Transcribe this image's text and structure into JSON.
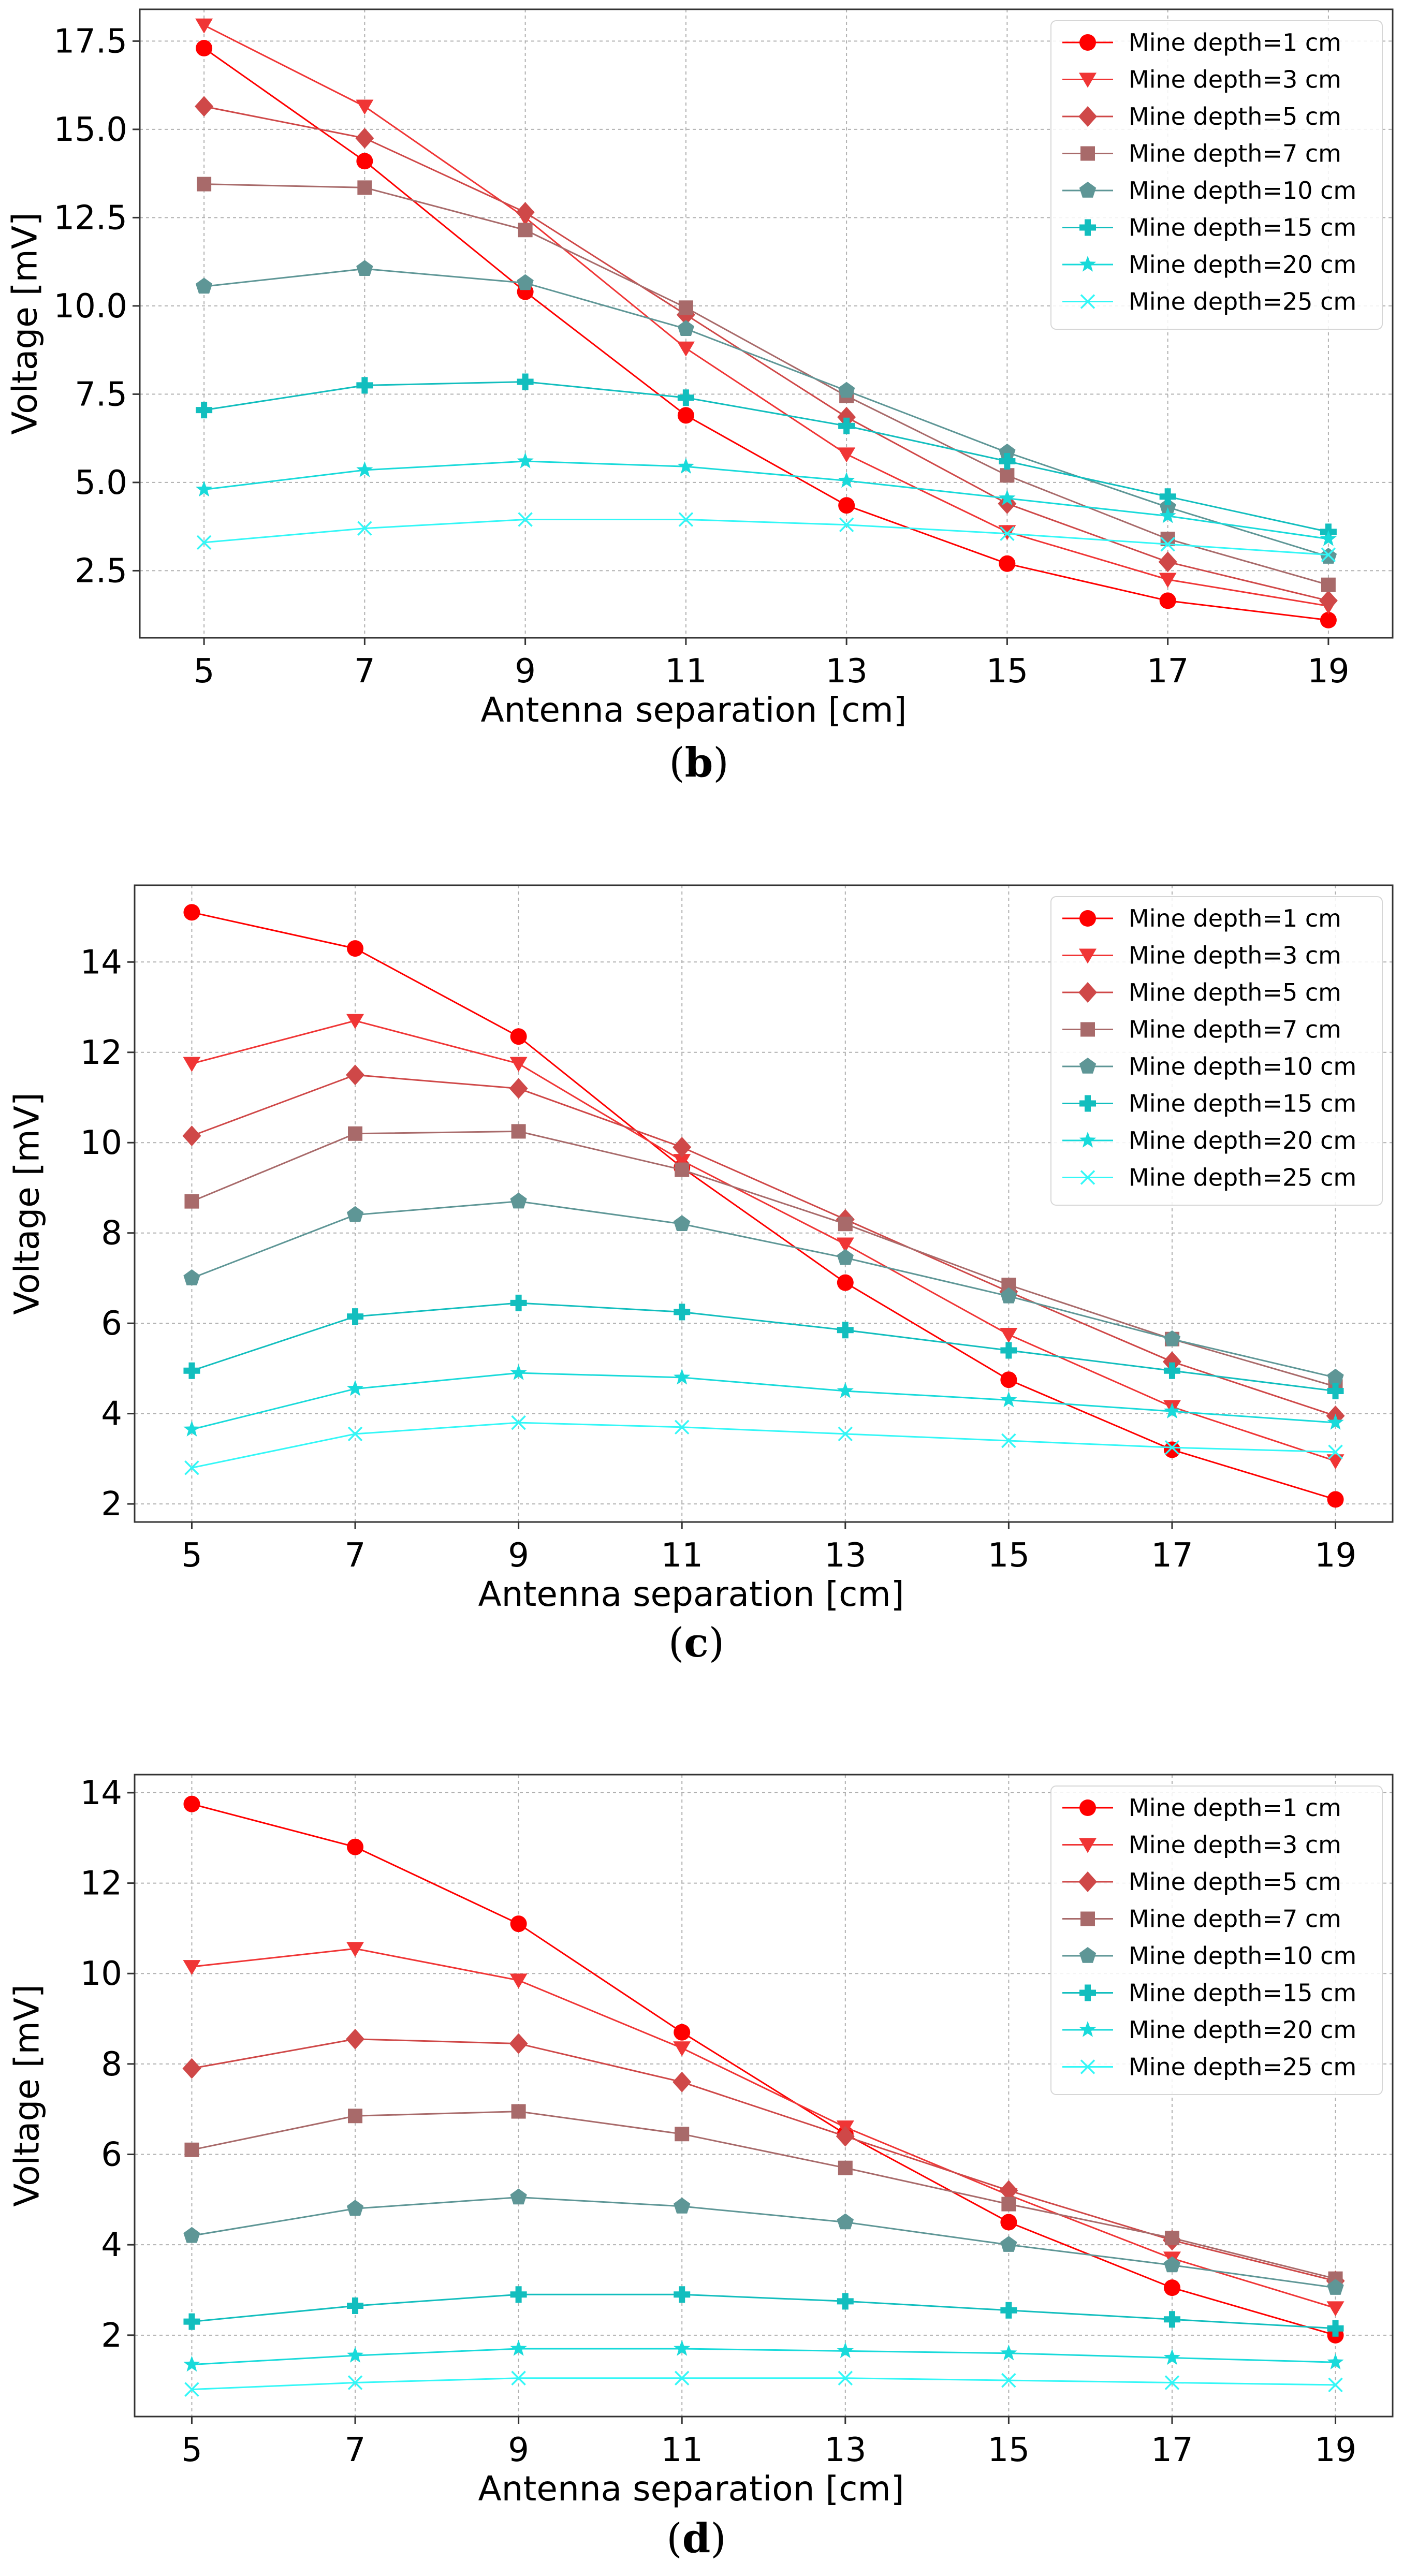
{
  "colors": {
    "Mine depth=1 cm": "#ff0000",
    "Mine depth=3 cm": "#f03535",
    "Mine depth=5 cm": "#cf4848",
    "Mine depth=7 cm": "#a86a6a",
    "Mine depth=10 cm": "#5e9696",
    "Mine depth=15 cm": "#12bebe",
    "Mine depth=20 cm": "#18dada",
    "Mine depth=25 cm": "#33f7f7"
  },
  "markers": [
    "circle",
    "triangle-down",
    "diamond",
    "square",
    "pentagon",
    "plus",
    "star",
    "x"
  ],
  "chart_data": [
    {
      "type": "line",
      "caption": {
        "open": "(",
        "letter": "b",
        "close": ")"
      },
      "xlabel": "Antenna separation [cm]",
      "ylabel": "Voltage [mV]",
      "x": [
        5,
        7,
        9,
        11,
        13,
        15,
        17,
        19
      ],
      "xticks": [
        "5",
        "7",
        "9",
        "11",
        "13",
        "15",
        "17",
        "19"
      ],
      "yticks": [
        2.5,
        5.0,
        7.5,
        10.0,
        12.5,
        15.0,
        17.5
      ],
      "yticklabels": [
        "2.5",
        "5.0",
        "7.5",
        "10.0",
        "12.5",
        "15.0",
        "17.5"
      ],
      "ylim": [
        0.6,
        18.4
      ],
      "xlim": [
        4.2,
        19.8
      ],
      "grid": true,
      "legend": "top-right",
      "series": [
        {
          "name": "Mine depth=1 cm",
          "values": [
            17.3,
            14.1,
            10.4,
            6.9,
            4.35,
            2.7,
            1.65,
            1.1
          ]
        },
        {
          "name": "Mine depth=3 cm",
          "values": [
            17.95,
            15.65,
            12.5,
            8.8,
            5.8,
            3.6,
            2.25,
            1.5
          ]
        },
        {
          "name": "Mine depth=5 cm",
          "values": [
            15.65,
            14.75,
            12.65,
            9.75,
            6.85,
            4.4,
            2.75,
            1.65
          ]
        },
        {
          "name": "Mine depth=7 cm",
          "values": [
            13.45,
            13.35,
            12.15,
            9.95,
            7.45,
            5.2,
            3.4,
            2.1
          ]
        },
        {
          "name": "Mine depth=10 cm",
          "values": [
            10.55,
            11.05,
            10.65,
            9.35,
            7.6,
            5.85,
            4.3,
            2.9
          ]
        },
        {
          "name": "Mine depth=15 cm",
          "values": [
            7.05,
            7.75,
            7.85,
            7.4,
            6.6,
            5.6,
            4.6,
            3.6
          ]
        },
        {
          "name": "Mine depth=20 cm",
          "values": [
            4.8,
            5.35,
            5.6,
            5.45,
            5.05,
            4.55,
            4.05,
            3.4
          ]
        },
        {
          "name": "Mine depth=25 cm",
          "values": [
            3.3,
            3.7,
            3.95,
            3.95,
            3.8,
            3.55,
            3.25,
            2.95
          ]
        }
      ]
    },
    {
      "type": "line",
      "caption": {
        "open": "(",
        "letter": "c",
        "close": ")"
      },
      "xlabel": "Antenna separation [cm]",
      "ylabel": "Voltage [mV]",
      "x": [
        5,
        7,
        9,
        11,
        13,
        15,
        17,
        19
      ],
      "xticks": [
        "5",
        "7",
        "9",
        "11",
        "13",
        "15",
        "17",
        "19"
      ],
      "yticks": [
        2,
        4,
        6,
        8,
        10,
        12,
        14
      ],
      "yticklabels": [
        "2",
        "4",
        "6",
        "8",
        "10",
        "12",
        "14"
      ],
      "ylim": [
        1.6,
        15.7
      ],
      "xlim": [
        4.3,
        19.7
      ],
      "grid": true,
      "legend": "top-right",
      "series": [
        {
          "name": "Mine depth=1 cm",
          "values": [
            15.1,
            14.3,
            12.35,
            9.45,
            6.9,
            4.75,
            3.2,
            2.1
          ]
        },
        {
          "name": "Mine depth=3 cm",
          "values": [
            11.75,
            12.7,
            11.75,
            9.6,
            7.75,
            5.75,
            4.15,
            2.95
          ]
        },
        {
          "name": "Mine depth=5 cm",
          "values": [
            10.15,
            11.5,
            11.2,
            9.9,
            8.3,
            6.7,
            5.15,
            3.95
          ]
        },
        {
          "name": "Mine depth=7 cm",
          "values": [
            8.7,
            10.2,
            10.25,
            9.4,
            8.2,
            6.85,
            5.65,
            4.6
          ]
        },
        {
          "name": "Mine depth=10 cm",
          "values": [
            7.0,
            8.4,
            8.7,
            8.2,
            7.45,
            6.6,
            5.65,
            4.8
          ]
        },
        {
          "name": "Mine depth=15 cm",
          "values": [
            4.95,
            6.15,
            6.45,
            6.25,
            5.85,
            5.4,
            4.95,
            4.5
          ]
        },
        {
          "name": "Mine depth=20 cm",
          "values": [
            3.65,
            4.55,
            4.9,
            4.8,
            4.5,
            4.3,
            4.05,
            3.8
          ]
        },
        {
          "name": "Mine depth=25 cm",
          "values": [
            2.8,
            3.55,
            3.8,
            3.7,
            3.55,
            3.4,
            3.25,
            3.15
          ]
        }
      ]
    },
    {
      "type": "line",
      "caption": {
        "open": "(",
        "letter": "d",
        "close": ")"
      },
      "xlabel": "Antenna separation [cm]",
      "ylabel": "Voltage [mV]",
      "x": [
        5,
        7,
        9,
        11,
        13,
        15,
        17,
        19
      ],
      "xticks": [
        "5",
        "7",
        "9",
        "11",
        "13",
        "15",
        "17",
        "19"
      ],
      "yticks": [
        2,
        4,
        6,
        8,
        10,
        12,
        14
      ],
      "yticklabels": [
        "2",
        "4",
        "6",
        "8",
        "10",
        "12",
        "14"
      ],
      "ylim": [
        0.2,
        14.4
      ],
      "xlim": [
        4.3,
        19.7
      ],
      "grid": true,
      "legend": "top-right",
      "series": [
        {
          "name": "Mine depth=1 cm",
          "values": [
            13.75,
            12.8,
            11.1,
            8.7,
            6.45,
            4.5,
            3.05,
            2.0
          ]
        },
        {
          "name": "Mine depth=3 cm",
          "values": [
            10.15,
            10.55,
            9.85,
            8.35,
            6.6,
            5.1,
            3.7,
            2.6
          ]
        },
        {
          "name": "Mine depth=5 cm",
          "values": [
            7.9,
            8.55,
            8.45,
            7.6,
            6.4,
            5.2,
            4.1,
            3.2
          ]
        },
        {
          "name": "Mine depth=7 cm",
          "values": [
            6.1,
            6.85,
            6.95,
            6.45,
            5.7,
            4.9,
            4.15,
            3.25
          ]
        },
        {
          "name": "Mine depth=10 cm",
          "values": [
            4.2,
            4.8,
            5.05,
            4.85,
            4.5,
            4.0,
            3.55,
            3.05
          ]
        },
        {
          "name": "Mine depth=15 cm",
          "values": [
            2.3,
            2.65,
            2.9,
            2.9,
            2.75,
            2.55,
            2.35,
            2.15
          ]
        },
        {
          "name": "Mine depth=20 cm",
          "values": [
            1.35,
            1.55,
            1.7,
            1.7,
            1.65,
            1.6,
            1.5,
            1.4
          ]
        },
        {
          "name": "Mine depth=25 cm",
          "values": [
            0.8,
            0.95,
            1.05,
            1.05,
            1.05,
            1.0,
            0.95,
            0.9
          ]
        }
      ]
    }
  ]
}
